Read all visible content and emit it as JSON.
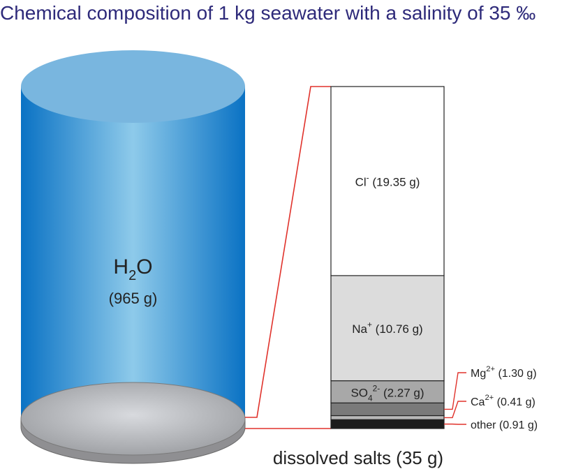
{
  "title": "Chemical composition of 1 kg seawater with a salinity of 35 ‰",
  "water": {
    "formula_main": "H",
    "formula_sub": "2",
    "formula_end": "O",
    "mass": "(965 g)"
  },
  "salts_label": "dissolved salts (35 g)",
  "colors": {
    "title": "#2e2a7a",
    "water_dark": "#0a72c4",
    "water_light": "#8ecaea",
    "water_top": "#79b6df",
    "disk": "#b5b5b5",
    "connector": "#e0322b"
  },
  "components": [
    {
      "id": "cl",
      "base": "Cl",
      "sup": "-",
      "sub": "",
      "amount": "(19.35 g)",
      "grams": 19.35,
      "fill": "#ffffff"
    },
    {
      "id": "na",
      "base": "Na",
      "sup": "+",
      "sub": "",
      "amount": "(10.76 g)",
      "grams": 10.76,
      "fill": "#dcdcdc"
    },
    {
      "id": "so4",
      "base": "SO",
      "sup": "2-",
      "sub": "4",
      "amount": "(2.27 g)",
      "grams": 2.27,
      "fill": "#a8a8a8"
    },
    {
      "id": "mg",
      "base": "Mg",
      "sup": "2+",
      "sub": "",
      "amount": "(1.30 g)",
      "grams": 1.3,
      "fill": "#7a7a7a"
    },
    {
      "id": "ca",
      "base": "Ca",
      "sup": "2+",
      "sub": "",
      "amount": "(0.41 g)",
      "grams": 0.41,
      "fill": "#b8b8b8"
    },
    {
      "id": "other",
      "base": "other",
      "sup": "",
      "sub": "",
      "amount": "(0.91 g)",
      "grams": 0.91,
      "fill": "#1c1c1c"
    }
  ]
}
